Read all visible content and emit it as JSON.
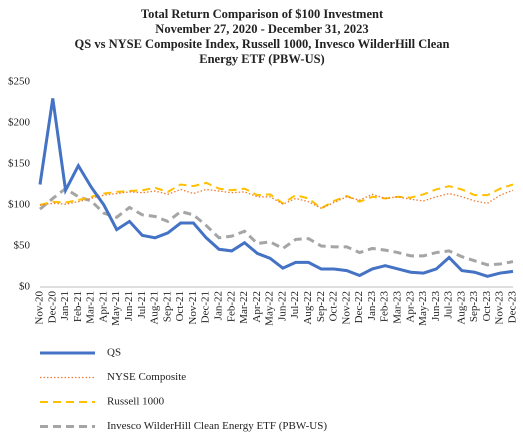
{
  "chart_data": {
    "type": "line",
    "title": [
      "Total Return Comparison of $100 Investment",
      "November 27, 2020 - December 31, 2023",
      "QS vs NYSE Composite Index, Russell 1000, Invesco WilderHill Clean",
      "Energy ETF (PBW-US)"
    ],
    "categories": [
      "Nov-20",
      "Dec-20",
      "Jan-21",
      "Feb-21",
      "Mar-21",
      "Apr-21",
      "May-21",
      "Jun-21",
      "Jul-21",
      "Aug-21",
      "Sep-21",
      "Oct-21",
      "Nov-21",
      "Dec-21",
      "Jan-22",
      "Feb-22",
      "Mar-22",
      "Apr-22",
      "May-22",
      "Jun-22",
      "Jul-22",
      "Aug-22",
      "Sep-22",
      "Oct-22",
      "Nov-22",
      "Dec-22",
      "Jan-23",
      "Feb-23",
      "Mar-23",
      "Apr-23",
      "May-23",
      "Jun-23",
      "Jul-23",
      "Aug-23",
      "Sep-23",
      "Oct-23",
      "Nov-23",
      "Dec-23"
    ],
    "series": [
      {
        "name": "QS",
        "color": "#4472c4",
        "style": "solid",
        "values": [
          125,
          230,
          118,
          148,
          122,
          100,
          70,
          80,
          63,
          60,
          66,
          78,
          78,
          60,
          46,
          44,
          54,
          41,
          35,
          23,
          30,
          30,
          22,
          22,
          20,
          14,
          22,
          26,
          22,
          18,
          17,
          22,
          36,
          20,
          18,
          13,
          17,
          19
        ]
      },
      {
        "name": "NYSE Composite",
        "color": "#ed7d31",
        "style": "dotted",
        "values": [
          100,
          102,
          101,
          104,
          108,
          112,
          114,
          116,
          115,
          117,
          113,
          119,
          114,
          119,
          117,
          115,
          116,
          110,
          110,
          101,
          108,
          104,
          96,
          103,
          110,
          106,
          113,
          108,
          110,
          107,
          105,
          110,
          114,
          110,
          105,
          102,
          112,
          118
        ]
      },
      {
        "name": "Russell 1000",
        "color": "#ffc000",
        "style": "dashed",
        "values": [
          100,
          104,
          103,
          106,
          110,
          114,
          116,
          117,
          118,
          121,
          116,
          125,
          123,
          127,
          120,
          118,
          120,
          112,
          113,
          102,
          112,
          108,
          96,
          105,
          111,
          104,
          110,
          108,
          110,
          109,
          113,
          119,
          123,
          119,
          112,
          112,
          120,
          125
        ]
      },
      {
        "name": "Invesco WilderHill Clean Energy ETF (PBW-US)",
        "color": "#a5a5a5",
        "style": "dashed",
        "values": [
          95,
          108,
          120,
          110,
          105,
          90,
          85,
          97,
          88,
          86,
          80,
          92,
          88,
          75,
          60,
          62,
          68,
          53,
          55,
          47,
          58,
          59,
          50,
          49,
          49,
          42,
          47,
          45,
          42,
          38,
          38,
          42,
          44,
          37,
          32,
          27,
          28,
          31
        ]
      }
    ],
    "ylim": [
      0,
      250
    ],
    "yticks": [
      {
        "value": 0,
        "label": "$0"
      },
      {
        "value": 50,
        "label": "$50"
      },
      {
        "value": 100,
        "label": "$100"
      },
      {
        "value": 150,
        "label": "$150"
      },
      {
        "value": 200,
        "label": "$200"
      },
      {
        "value": 250,
        "label": "$250"
      }
    ],
    "grid": false,
    "legend": "bottom"
  }
}
